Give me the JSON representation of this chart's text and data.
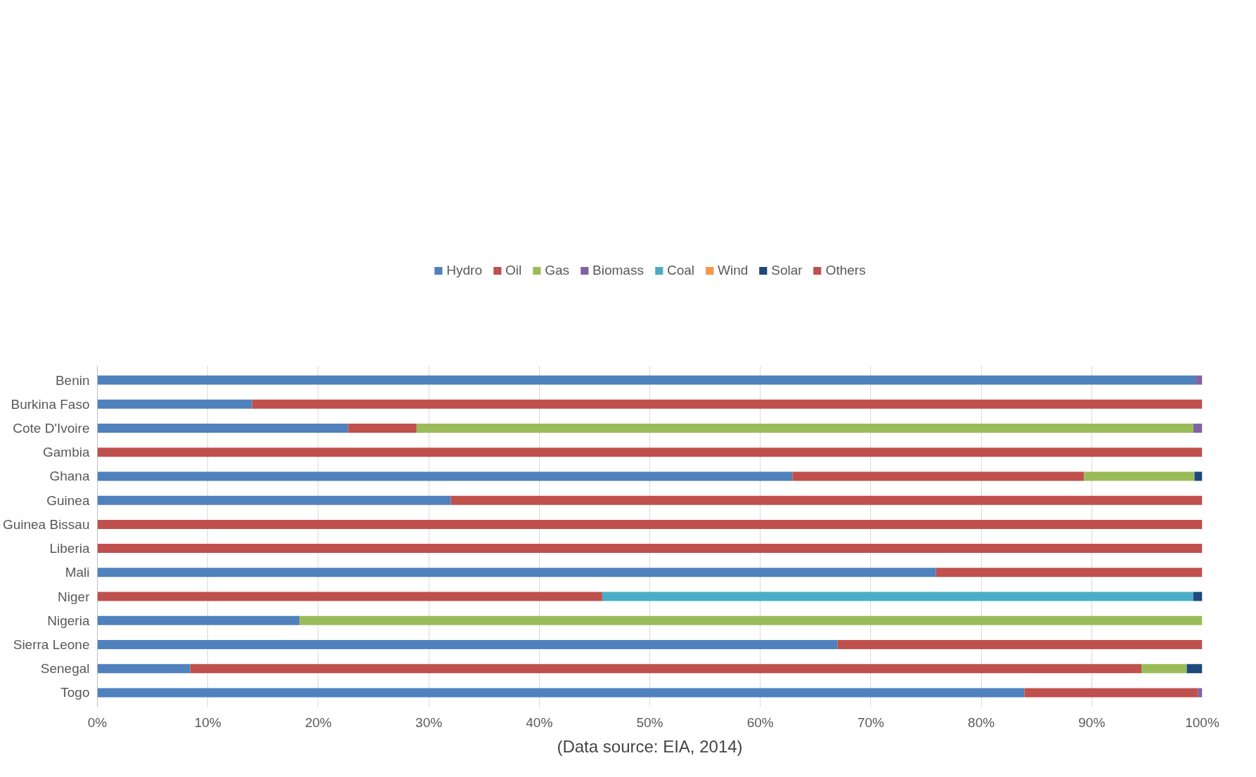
{
  "chart_data": {
    "type": "bar",
    "orientation": "horizontal",
    "stacked": true,
    "categories": [
      "Benin",
      "Burkina Faso",
      "Cote D'Ivoire",
      "Gambia",
      "Ghana",
      "Guinea",
      "Guinea Bissau",
      "Liberia",
      "Mali",
      "Niger",
      "Nigeria",
      "Sierra Leone",
      "Senegal",
      "Togo"
    ],
    "series": [
      {
        "name": "Hydro",
        "color": "#4f81bd",
        "values": [
          99.4,
          14.0,
          22.7,
          0,
          62.9,
          32.0,
          0,
          0,
          75.9,
          0,
          18.3,
          67.0,
          8.4,
          83.9
        ]
      },
      {
        "name": "Oil",
        "color": "#c0504d",
        "values": [
          0,
          86.0,
          6.2,
          100,
          26.4,
          68.0,
          100,
          100,
          24.1,
          45.7,
          0,
          33.0,
          86.1,
          15.7
        ]
      },
      {
        "name": "Gas",
        "color": "#9bbb59",
        "values": [
          0,
          0,
          70.3,
          0,
          10.0,
          0,
          0,
          0,
          0,
          0,
          81.7,
          0,
          4.1,
          0
        ]
      },
      {
        "name": "Biomass",
        "color": "#8064a2",
        "values": [
          0.6,
          0,
          0.8,
          0,
          0,
          0,
          0,
          0,
          0,
          0,
          0,
          0,
          0,
          0.4
        ]
      },
      {
        "name": "Coal",
        "color": "#4bacc6",
        "values": [
          0,
          0,
          0,
          0,
          0,
          0,
          0,
          0,
          0,
          53.5,
          0,
          0,
          0,
          0
        ]
      },
      {
        "name": "Wind",
        "color": "#f79646",
        "values": [
          0,
          0,
          0,
          0,
          0,
          0,
          0,
          0,
          0,
          0,
          0,
          0,
          0,
          0
        ]
      },
      {
        "name": "Solar",
        "color": "#1f497d",
        "values": [
          0,
          0,
          0,
          0,
          0.7,
          0,
          0,
          0,
          0,
          0.8,
          0,
          0,
          1.4,
          0
        ]
      },
      {
        "name": "Others",
        "color": "#c0504d",
        "values": [
          0,
          0,
          0,
          0,
          0,
          0,
          0,
          0,
          0,
          0,
          0,
          0,
          0,
          0
        ]
      }
    ],
    "xlim": [
      0,
      100
    ],
    "xticks": [
      {
        "value": 0,
        "label": "0%"
      },
      {
        "value": 10,
        "label": "10%"
      },
      {
        "value": 20,
        "label": "20%"
      },
      {
        "value": 30,
        "label": "30%"
      },
      {
        "value": 40,
        "label": "40%"
      },
      {
        "value": 50,
        "label": "50%"
      },
      {
        "value": 60,
        "label": "60%"
      },
      {
        "value": 70,
        "label": "70%"
      },
      {
        "value": 80,
        "label": "80%"
      },
      {
        "value": 90,
        "label": "90%"
      },
      {
        "value": 100,
        "label": "100%"
      }
    ],
    "grid": "x",
    "legend": "top",
    "annotations": [
      "(Data source: EIA, 2014)"
    ]
  }
}
